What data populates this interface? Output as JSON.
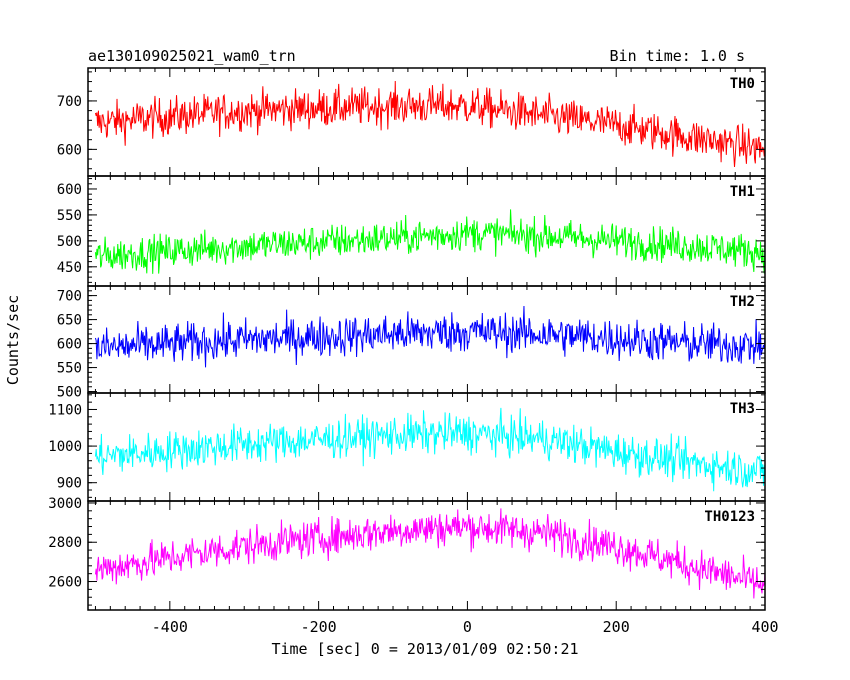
{
  "chart_data": {
    "type": "line",
    "title": "ae130109025021_wam0_trn",
    "subtitle": "Bin time: 1.0 s",
    "xlabel": "Time [sec] 0 = 2013/01/09 02:50:21",
    "ylabel": "Counts/sec",
    "xlim": [
      -510,
      400
    ],
    "x_ticks": [
      -400,
      -200,
      0,
      200,
      400
    ],
    "panels": [
      {
        "name": "TH0",
        "color": "#ff0000",
        "ylim": [
          545,
          768
        ],
        "y_ticks": [
          600,
          700
        ],
        "trend": [
          [
            -500,
            655
          ],
          [
            -300,
            680
          ],
          [
            -100,
            690
          ],
          [
            0,
            690
          ],
          [
            100,
            670
          ],
          [
            200,
            650
          ],
          [
            300,
            625
          ],
          [
            400,
            600
          ]
        ],
        "noise": 36
      },
      {
        "name": "TH1",
        "color": "#00ff00",
        "ylim": [
          413,
          625
        ],
        "y_ticks": [
          450,
          500,
          550,
          600
        ],
        "trend": [
          [
            -500,
            470
          ],
          [
            -300,
            490
          ],
          [
            -100,
            505
          ],
          [
            0,
            515
          ],
          [
            100,
            510
          ],
          [
            200,
            500
          ],
          [
            300,
            490
          ],
          [
            400,
            478
          ]
        ],
        "noise": 30
      },
      {
        "name": "TH2",
        "color": "#0000ff",
        "ylim": [
          497,
          720
        ],
        "y_ticks": [
          500,
          550,
          600,
          650,
          700
        ],
        "trend": [
          [
            -500,
            590
          ],
          [
            -300,
            608
          ],
          [
            -100,
            620
          ],
          [
            0,
            625
          ],
          [
            100,
            620
          ],
          [
            200,
            610
          ],
          [
            300,
            600
          ],
          [
            400,
            595
          ]
        ],
        "noise": 38
      },
      {
        "name": "TH3",
        "color": "#00ffff",
        "ylim": [
          850,
          1145
        ],
        "y_ticks": [
          900,
          1000,
          1100
        ],
        "trend": [
          [
            -500,
            970
          ],
          [
            -300,
            1005
          ],
          [
            -100,
            1030
          ],
          [
            0,
            1035
          ],
          [
            100,
            1020
          ],
          [
            200,
            985
          ],
          [
            300,
            955
          ],
          [
            400,
            930
          ]
        ],
        "noise": 48
      },
      {
        "name": "TH0123",
        "color": "#ff00ff",
        "ylim": [
          2455,
          3010
        ],
        "y_ticks": [
          2600,
          2800,
          3000
        ],
        "trend": [
          [
            -500,
            2660
          ],
          [
            -300,
            2780
          ],
          [
            -100,
            2860
          ],
          [
            0,
            2880
          ],
          [
            100,
            2850
          ],
          [
            200,
            2780
          ],
          [
            300,
            2680
          ],
          [
            400,
            2580
          ]
        ],
        "noise": 85
      }
    ]
  }
}
